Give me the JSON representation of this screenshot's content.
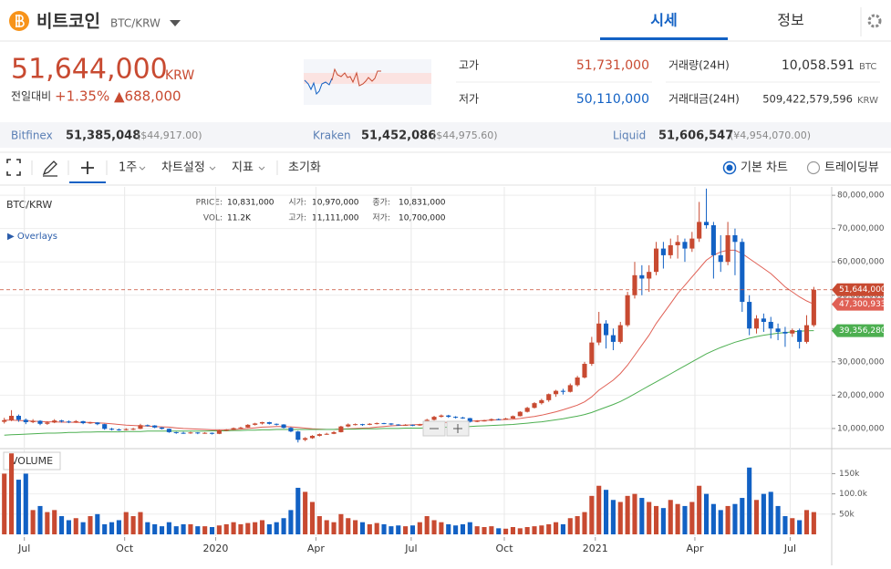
{
  "header": {
    "name": "비트코인",
    "symbol": "BTC/KRW",
    "tabs": [
      "시세",
      "정보"
    ]
  },
  "ticker": {
    "price": "51,644,000",
    "currency": "KRW",
    "change_label": "전일대비",
    "change_rate": "+1.35%",
    "change_amount": "▲688,000",
    "high_label": "고가",
    "high": "51,731,000",
    "low_label": "저가",
    "low": "50,110,000",
    "volume_label": "거래량(24H)",
    "volume": "10,058.591",
    "volume_unit": "BTC",
    "value_label": "거래대금(24H)",
    "value": "509,422,579,596",
    "value_unit": "KRW"
  },
  "exchanges": [
    {
      "name": "Bitfinex",
      "price": "51,385,048",
      "foreign": "($44,917.00)"
    },
    {
      "name": "Kraken",
      "price": "51,452,086",
      "foreign": "($44,975.60)"
    },
    {
      "name": "Liquid",
      "price": "51,606,547",
      "foreign": "(¥4,954,070.00)"
    }
  ],
  "toolbar": {
    "period": "1주",
    "items": [
      "차트설정",
      "지표",
      "초기화"
    ],
    "modes": [
      "기본 차트",
      "트레이딩뷰"
    ]
  },
  "chart_data": {
    "type": "candlestick",
    "title": "BTC/KRW",
    "overlays": "▶ Overlays",
    "info": [
      [
        "PRICE:",
        "10,831,000"
      ],
      [
        "시가:",
        "10,970,000"
      ],
      [
        "종가:",
        "10,831,000"
      ],
      [
        "VOL:",
        "11.2K"
      ],
      [
        "고가:",
        "11,111,000"
      ],
      [
        "저가:",
        "10,700,000"
      ]
    ],
    "up_color": "#c84a31",
    "down_color": "#1261c4",
    "open": [
      12000000,
      12500000,
      13800000,
      12600000,
      11900000,
      12300000,
      11400000,
      11800000,
      12400000,
      12100000,
      11900000,
      12200000,
      11600000,
      11800000,
      11300000,
      9900000,
      9700000,
      9600000,
      9800000,
      9900000,
      11000000,
      10900000,
      10300000,
      9900000,
      8900000,
      8700000,
      8600000,
      8800000,
      8600000,
      8700000,
      8400000,
      9400000,
      9600000,
      10100000,
      10300000,
      11100000,
      11500000,
      11900000,
      11400000,
      11200000,
      10200000,
      9100000,
      6600000,
      7100000,
      7800000,
      8300000,
      8400000,
      8900000,
      10600000,
      11200000,
      11300000,
      11100000,
      11400000,
      11600000,
      11500000,
      11200000,
      11000000,
      11100000,
      10900000,
      11200000,
      12600000,
      13500000,
      13900000,
      13500000,
      13300000,
      13100000,
      12000000,
      12300000,
      12400000,
      12800000,
      12700000,
      13000000,
      13700000,
      15000000,
      16200000,
      17600000,
      18500000,
      20300000,
      21300000,
      21000000,
      23000000,
      25300000,
      29400000,
      35800000,
      41500000,
      38000000,
      36000000,
      41000000,
      50000000,
      56000000,
      55000000,
      57000000,
      64000000,
      62000000,
      65000000,
      66000000,
      64000000,
      67000000,
      72000000,
      71000000,
      62000000,
      60000000,
      68000000,
      66000000,
      48000000,
      40000000,
      43000000,
      42000000,
      40000000,
      39000000,
      38500000,
      39500000,
      36000000,
      41000000
    ],
    "high": [
      13200000,
      15500000,
      14200000,
      13000000,
      12800000,
      12500000,
      12200000,
      12800000,
      12600000,
      12400000,
      12500000,
      12300000,
      12000000,
      11900000,
      11400000,
      10200000,
      10000000,
      10100000,
      10200000,
      11400000,
      11200000,
      11000000,
      10400000,
      10000000,
      9000000,
      9000000,
      9000000,
      8900000,
      8900000,
      8800000,
      9600000,
      9800000,
      10300000,
      10500000,
      11300000,
      11700000,
      12000000,
      12000000,
      11500000,
      11300000,
      10400000,
      9300000,
      7400000,
      8000000,
      8500000,
      8700000,
      9200000,
      10800000,
      11500000,
      11500000,
      11400000,
      11600000,
      11800000,
      11700000,
      11600000,
      11300000,
      11300000,
      11200000,
      11400000,
      12900000,
      13800000,
      14200000,
      14100000,
      13700000,
      13500000,
      13200000,
      12500000,
      12600000,
      13000000,
      13000000,
      13200000,
      13900000,
      15200000,
      16500000,
      17900000,
      18900000,
      20500000,
      21600000,
      21900000,
      23500000,
      25800000,
      30000000,
      37500000,
      45000000,
      42500000,
      40000000,
      42000000,
      51000000,
      60000000,
      59000000,
      59000000,
      66000000,
      66000000,
      67000000,
      68000000,
      67000000,
      69000000,
      78000000,
      82000000,
      72000000,
      68000000,
      72000000,
      70000000,
      67000000,
      50000000,
      44000000,
      44500000,
      43500000,
      41500000,
      40500000,
      40000000,
      40000000,
      44000000,
      52500000
    ],
    "low": [
      11500000,
      12200000,
      12000000,
      11300000,
      11600000,
      11000000,
      11100000,
      11600000,
      11800000,
      11600000,
      11700000,
      11300000,
      11400000,
      11000000,
      9600000,
      9400000,
      9300000,
      9400000,
      9500000,
      9800000,
      10600000,
      10100000,
      9700000,
      8700000,
      8400000,
      8400000,
      8400000,
      8300000,
      8400000,
      8200000,
      8300000,
      9200000,
      9500000,
      9900000,
      10200000,
      10900000,
      11200000,
      11200000,
      10900000,
      10000000,
      8900000,
      5800000,
      6200000,
      6900000,
      7600000,
      8100000,
      8300000,
      8800000,
      10400000,
      10900000,
      10800000,
      11000000,
      11200000,
      11300000,
      11000000,
      10800000,
      10800000,
      10700000,
      10800000,
      11100000,
      12400000,
      13300000,
      13200000,
      13000000,
      12900000,
      11800000,
      11900000,
      12100000,
      12200000,
      12500000,
      12600000,
      12900000,
      13600000,
      14800000,
      16000000,
      17200000,
      18000000,
      19500000,
      20200000,
      20800000,
      22600000,
      25000000,
      28800000,
      35000000,
      34000000,
      33500000,
      35500000,
      40500000,
      49000000,
      50000000,
      51000000,
      56000000,
      58000000,
      61000000,
      61000000,
      60000000,
      63000000,
      66000000,
      70000000,
      55000000,
      57000000,
      59000000,
      56000000,
      45000000,
      38000000,
      38500000,
      39000000,
      37000000,
      36500000,
      34500000,
      37500000,
      34000000,
      35500000,
      40500000
    ],
    "close": [
      12500000,
      13800000,
      12600000,
      11900000,
      12300000,
      11400000,
      11800000,
      12400000,
      12100000,
      11900000,
      12200000,
      11600000,
      11800000,
      11300000,
      9900000,
      9700000,
      9600000,
      9800000,
      9900000,
      11000000,
      10900000,
      10300000,
      9900000,
      8900000,
      8700000,
      8600000,
      8800000,
      8600000,
      8700000,
      8400000,
      9400000,
      9600000,
      10100000,
      10300000,
      11100000,
      11500000,
      11900000,
      11400000,
      11200000,
      10200000,
      9100000,
      6600000,
      7100000,
      7800000,
      8300000,
      8400000,
      8900000,
      10600000,
      11200000,
      11300000,
      11100000,
      11400000,
      11600000,
      11500000,
      11200000,
      11000000,
      11100000,
      10900000,
      11200000,
      12600000,
      13500000,
      13900000,
      13500000,
      13300000,
      13100000,
      12000000,
      12300000,
      12400000,
      12800000,
      12700000,
      13000000,
      13700000,
      15000000,
      16200000,
      17600000,
      18500000,
      20300000,
      21300000,
      21000000,
      23000000,
      25300000,
      29400000,
      35800000,
      41500000,
      38000000,
      36000000,
      41000000,
      50000000,
      56000000,
      55000000,
      57000000,
      64000000,
      62000000,
      65000000,
      66000000,
      64000000,
      67000000,
      72000000,
      71000000,
      62000000,
      60000000,
      68000000,
      66000000,
      48000000,
      40000000,
      43000000,
      42000000,
      40000000,
      39000000,
      38500000,
      39500000,
      36000000,
      41000000,
      51644000
    ],
    "close_label": "51,644,000",
    "series": [
      {
        "color": "#e06055",
        "last_label": "47,300,933",
        "values": [
          12500000,
          12500000,
          12400000,
          12300000,
          12200000,
          12100000,
          12000000,
          12000000,
          11900000,
          11900000,
          11800000,
          11800000,
          11800000,
          11700000,
          11600000,
          11400000,
          11200000,
          11000000,
          10900000,
          10800000,
          10700000,
          10600000,
          10500000,
          10400000,
          10200000,
          10000000,
          9900000,
          9800000,
          9700000,
          9600000,
          9600000,
          9600000,
          9700000,
          9800000,
          10000000,
          10200000,
          10400000,
          10500000,
          10600000,
          10600000,
          10500000,
          10300000,
          10100000,
          9900000,
          9800000,
          9700000,
          9700000,
          9800000,
          9900000,
          10000000,
          10100000,
          10200000,
          10400000,
          10600000,
          10800000,
          10900000,
          11000000,
          11100000,
          11200000,
          11300000,
          11500000,
          11700000,
          11900000,
          12000000,
          12100000,
          12200000,
          12300000,
          12400000,
          12500000,
          12600000,
          12700000,
          12800000,
          13000000,
          13300000,
          13600000,
          14000000,
          14500000,
          15000000,
          15600000,
          16300000,
          17000000,
          18000000,
          19500000,
          21500000,
          23000000,
          24500000,
          26500000,
          29000000,
          32000000,
          35000000,
          38000000,
          41500000,
          44500000,
          47500000,
          50500000,
          53000000,
          55500000,
          58000000,
          60500000,
          62000000,
          63000000,
          63500000,
          63500000,
          62500000,
          61000000,
          59500000,
          58000000,
          56500000,
          54500000,
          52500000,
          51000000,
          49500000,
          48300000,
          47300933
        ]
      },
      {
        "color": "#4caf50",
        "last_label": "39,356,280",
        "values": [
          8000000,
          8100000,
          8200000,
          8300000,
          8400000,
          8500000,
          8600000,
          8600000,
          8700000,
          8800000,
          8800000,
          8900000,
          8900000,
          9000000,
          9000000,
          9000000,
          9000000,
          9100000,
          9100000,
          9100000,
          9200000,
          9200000,
          9200000,
          9200000,
          9200000,
          9200000,
          9200000,
          9200000,
          9200000,
          9300000,
          9300000,
          9300000,
          9400000,
          9400000,
          9500000,
          9500000,
          9600000,
          9600000,
          9700000,
          9700000,
          9700000,
          9700000,
          9700000,
          9700000,
          9700000,
          9700000,
          9700000,
          9800000,
          9800000,
          9800000,
          9900000,
          9900000,
          9900000,
          10000000,
          10000000,
          10000000,
          10100000,
          10100000,
          10100000,
          10200000,
          10300000,
          10300000,
          10400000,
          10500000,
          10500000,
          10600000,
          10700000,
          10800000,
          10900000,
          11000000,
          11100000,
          11200000,
          11400000,
          11600000,
          11800000,
          12000000,
          12300000,
          12600000,
          12900000,
          13300000,
          13700000,
          14200000,
          14800000,
          15600000,
          16400000,
          17200000,
          18100000,
          19200000,
          20400000,
          21600000,
          22800000,
          24000000,
          25200000,
          26400000,
          27600000,
          28800000,
          30000000,
          31200000,
          32400000,
          33400000,
          34300000,
          35100000,
          35900000,
          36500000,
          37100000,
          37600000,
          38000000,
          38300000,
          38600000,
          38800000,
          39000000,
          39200000,
          39300000,
          39356280
        ]
      }
    ],
    "xlim": [
      -0.6,
      115.5
    ],
    "xticks": [
      {
        "value": 2.8,
        "label": "Jul"
      },
      {
        "value": 16.8,
        "label": "Oct"
      },
      {
        "value": 29.5,
        "label": "2020"
      },
      {
        "value": 43.5,
        "label": "Apr"
      },
      {
        "value": 56.8,
        "label": "Jul"
      },
      {
        "value": 69.8,
        "label": "Oct"
      },
      {
        "value": 82.5,
        "label": "2021"
      },
      {
        "value": 96.4,
        "label": "Apr"
      },
      {
        "value": 109.7,
        "label": "Jul"
      }
    ],
    "ylim": [
      4500000,
      82500000
    ],
    "yticks": [
      {
        "value": 10000000,
        "label": "10,000,000"
      },
      {
        "value": 20000000,
        "label": "20,000,000"
      },
      {
        "value": 30000000,
        "label": "30,000,000"
      },
      {
        "value": 40000000,
        "label": "40,000,000"
      },
      {
        "value": 50000000,
        "label": "50,000,000"
      },
      {
        "value": 60000000,
        "label": "60,000,000"
      },
      {
        "value": 70000000,
        "label": "70,000,000"
      },
      {
        "value": 80000000,
        "label": "80,000,000"
      }
    ],
    "grid": true,
    "volume": {
      "label": "VOLUME",
      "ylim": [
        0,
        205000
      ],
      "yticks": [
        {
          "value": 50000,
          "label": "50k"
        },
        {
          "value": 100000,
          "label": "100.0k"
        },
        {
          "value": 150000,
          "label": "150k"
        }
      ],
      "values": [
        150000,
        200000,
        135000,
        150000,
        60000,
        70000,
        55000,
        60000,
        45000,
        35000,
        40000,
        30000,
        45000,
        50000,
        25000,
        30000,
        35000,
        55000,
        45000,
        55000,
        30000,
        25000,
        20000,
        30000,
        20000,
        25000,
        25000,
        20000,
        20000,
        18000,
        22000,
        25000,
        30000,
        25000,
        28000,
        30000,
        35000,
        25000,
        30000,
        40000,
        60000,
        115000,
        105000,
        80000,
        45000,
        35000,
        30000,
        50000,
        40000,
        35000,
        30000,
        25000,
        28000,
        25000,
        20000,
        22000,
        20000,
        22000,
        30000,
        45000,
        35000,
        30000,
        25000,
        22000,
        25000,
        30000,
        20000,
        18000,
        20000,
        15000,
        14000,
        18000,
        15000,
        18000,
        20000,
        22000,
        25000,
        30000,
        25000,
        40000,
        45000,
        55000,
        95000,
        120000,
        110000,
        85000,
        80000,
        95000,
        100000,
        90000,
        80000,
        70000,
        65000,
        85000,
        75000,
        70000,
        80000,
        120000,
        100000,
        75000,
        60000,
        70000,
        75000,
        90000,
        165000,
        85000,
        100000,
        105000,
        70000,
        45000,
        40000,
        35000,
        60000,
        55000
      ]
    }
  }
}
